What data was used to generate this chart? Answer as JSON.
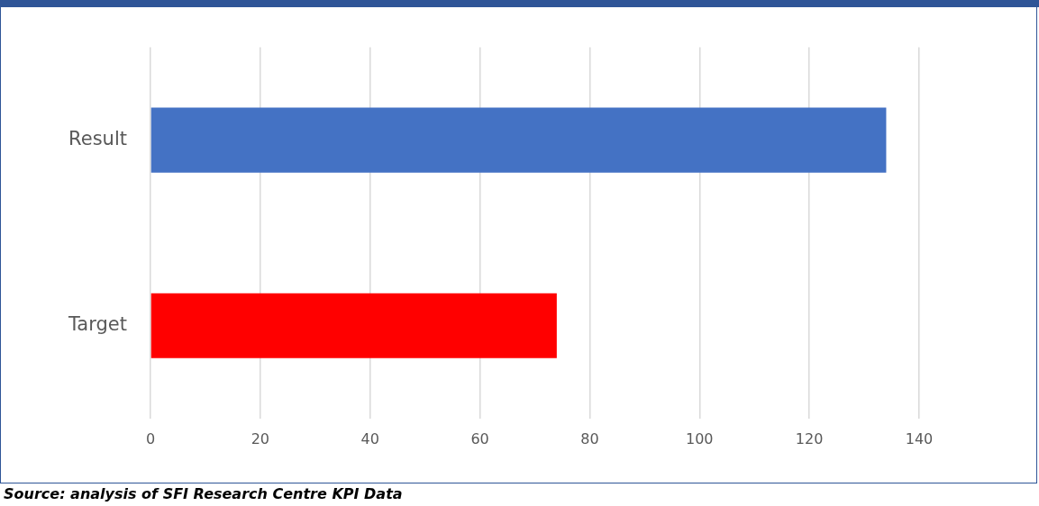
{
  "chart_data": {
    "type": "bar",
    "orientation": "horizontal",
    "categories": [
      "Result",
      "Target"
    ],
    "values": [
      134,
      74
    ],
    "colors": [
      "#4472c4",
      "#ff0000"
    ],
    "xlim": [
      0,
      140
    ],
    "xticks": [
      0,
      20,
      40,
      60,
      80,
      100,
      120,
      140
    ],
    "grid": "x",
    "legend": false,
    "annotations": [
      "Source: analysis of SFI Research Centre KPI Data"
    ]
  }
}
